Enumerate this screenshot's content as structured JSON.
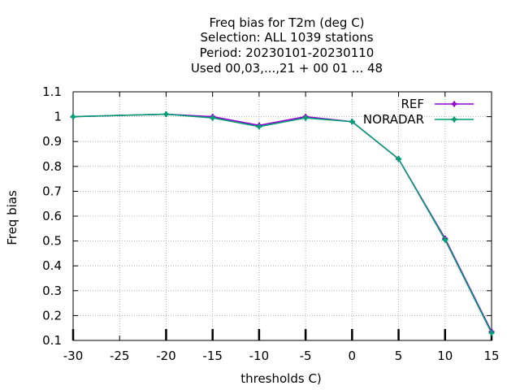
{
  "chart_data": {
    "type": "line",
    "title_lines": [
      "Freq bias  for T2m (deg C)",
      "Selection: ALL   1039 stations",
      "Period: 20230101-20230110",
      "Used  00,03,...,21  + 00 01 ... 48"
    ],
    "xlabel": "thresholds C)",
    "ylabel": "Freq bias",
    "xlim": [
      -30,
      15
    ],
    "ylim": [
      0.1,
      1.1
    ],
    "xticks": [
      "-30",
      "-25",
      "-20",
      "-15",
      "-10",
      "-5",
      "0",
      "5",
      "10",
      "15"
    ],
    "yticks": [
      "0.1",
      "0.2",
      "0.3",
      "0.4",
      "0.5",
      "0.6",
      "0.7",
      "0.8",
      "0.9",
      "1",
      "1.1"
    ],
    "grid": true,
    "legend_position": "top-right",
    "series": [
      {
        "name": "REF",
        "color": "#9400d3",
        "x": [
          -30,
          -20,
          -15,
          -10,
          -5,
          0,
          5,
          10,
          15
        ],
        "y": [
          1.0,
          1.01,
          1.0,
          0.965,
          1.0,
          0.98,
          0.83,
          0.51,
          0.135
        ]
      },
      {
        "name": "NORADAR",
        "color": "#009e73",
        "x": [
          -30,
          -20,
          -15,
          -10,
          -5,
          0,
          5,
          10,
          15
        ],
        "y": [
          1.0,
          1.01,
          0.995,
          0.96,
          0.995,
          0.98,
          0.83,
          0.505,
          0.13
        ]
      }
    ]
  }
}
